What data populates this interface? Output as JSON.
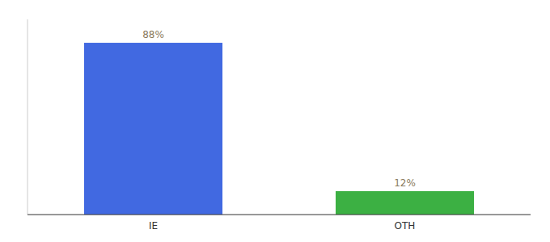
{
  "chart_data": {
    "type": "bar",
    "categories": [
      "IE",
      "OTH"
    ],
    "values": [
      88,
      12
    ],
    "value_labels": [
      "88%",
      "12%"
    ],
    "colors": [
      "#4169E1",
      "#3CB043"
    ],
    "ylim": [
      0,
      100
    ],
    "data_labels": true,
    "tick_labels": "x",
    "grid": false
  }
}
